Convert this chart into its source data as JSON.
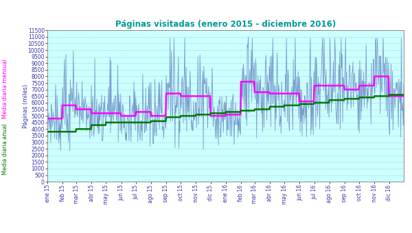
{
  "title": "Páginas visitadas (enero 2015 - diciembre 2016)",
  "title_color": "#009999",
  "ylabel": "Páginas (miles)",
  "ylabel2_monthly": "Media diaria mensual",
  "ylabel2_annual": "Media diaria anual",
  "ylabel_color": "#3333AA",
  "ylabel_monthly_color": "#FF00FF",
  "ylabel_annual_color": "#006600",
  "background_color": "#CCFFFF",
  "plot_bg_color": "#CCFFFF",
  "outer_bg_color": "#FFFFFF",
  "grid_color": "#99BBBB",
  "ylim": [
    0,
    11500
  ],
  "yticks": [
    0,
    500,
    1000,
    1500,
    2000,
    2500,
    3000,
    3500,
    4000,
    4500,
    5000,
    5500,
    6000,
    6500,
    7000,
    7500,
    8000,
    8500,
    9000,
    9500,
    10000,
    10500,
    11000,
    11500
  ],
  "x_labels": [
    "ene 15",
    "feb 15",
    "mar 15",
    "abr 15",
    "may 15",
    "jun 15",
    "jul 15",
    "ago 15",
    "sep 15",
    "oct 15",
    "nov 15",
    "dic 15",
    "ene 16",
    "feb 16",
    "mar 16",
    "abr 16",
    "may 16",
    "jun 16",
    "jul 16",
    "ago 16",
    "sep 16",
    "oct 16",
    "nov 16",
    "dic 16"
  ],
  "daily_color": "#7799CC",
  "monthly_color": "#FF00FF",
  "annual_color": "#007700",
  "daily_linewidth": 0.6,
  "monthly_linewidth": 1.8,
  "annual_linewidth": 1.8,
  "monthly_means": [
    4800,
    5800,
    5500,
    5200,
    5200,
    5000,
    5300,
    5000,
    6700,
    6500,
    6500,
    5000,
    5100,
    7600,
    6800,
    6700,
    6700,
    6100,
    7300,
    7300,
    7000,
    7300,
    8000,
    6500
  ],
  "annual_means": [
    3800,
    3800,
    4000,
    4300,
    4500,
    4500,
    4500,
    4600,
    4900,
    5000,
    5100,
    5200,
    5300,
    5400,
    5500,
    5700,
    5800,
    5900,
    6000,
    6200,
    6300,
    6400,
    6500,
    6600
  ],
  "n_days_per_month": [
    31,
    28,
    31,
    30,
    31,
    30,
    31,
    31,
    30,
    31,
    30,
    31,
    31,
    28,
    31,
    30,
    31,
    30,
    31,
    31,
    30,
    31,
    30,
    31
  ]
}
